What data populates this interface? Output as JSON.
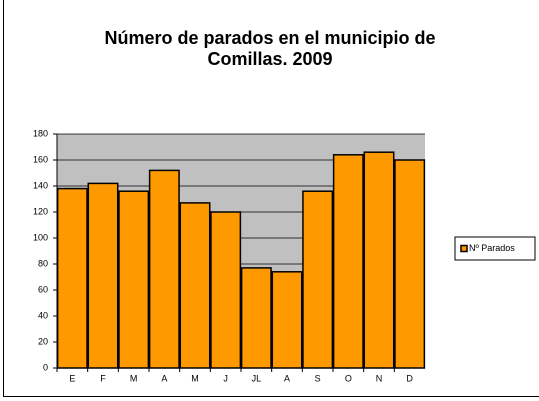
{
  "chart_data": {
    "type": "bar",
    "title": "Número de parados en el municipio de Comillas. 2009",
    "categories": [
      "E",
      "F",
      "M",
      "A",
      "M",
      "J",
      "JL",
      "A",
      "S",
      "O",
      "N",
      "D"
    ],
    "series": [
      {
        "name": "Nº Parados",
        "color": "#ff9900",
        "values": [
          138,
          142,
          136,
          152,
          127,
          120,
          77,
          74,
          136,
          164,
          166,
          160
        ]
      }
    ],
    "ylim": [
      0,
      180
    ],
    "yticks": [
      0,
      20,
      40,
      60,
      80,
      100,
      120,
      140,
      160,
      180
    ],
    "grid": true,
    "legend": "right"
  }
}
